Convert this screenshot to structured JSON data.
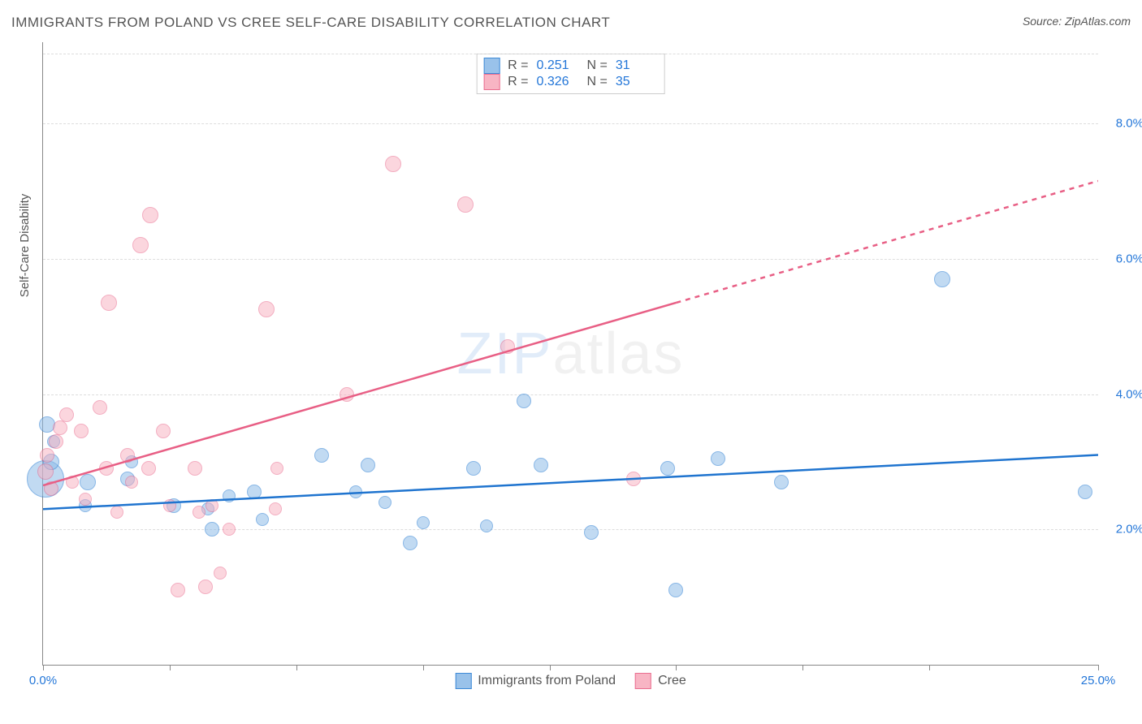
{
  "title": "IMMIGRANTS FROM POLAND VS CREE SELF-CARE DISABILITY CORRELATION CHART",
  "source_label": "Source: ZipAtlas.com",
  "ylabel": "Self-Care Disability",
  "watermark_a": "ZIP",
  "watermark_b": "atlas",
  "chart": {
    "type": "scatter",
    "background_color": "#ffffff",
    "grid_color": "#dddddd",
    "axis_color": "#888888",
    "tick_label_color": "#2376d8",
    "xlim": [
      0,
      25
    ],
    "ylim": [
      0,
      9.2
    ],
    "x_tick_positions": [
      0,
      3,
      6,
      9,
      12,
      15,
      18,
      21,
      25
    ],
    "x_tick_labels_shown": {
      "0": "0.0%",
      "25": "25.0%"
    },
    "y_tick_positions": [
      2,
      4,
      6,
      8
    ],
    "y_tick_labels": {
      "2": "2.0%",
      "4": "4.0%",
      "6": "6.0%",
      "8": "8.0%"
    },
    "tick_fontsize": 15,
    "title_fontsize": 17,
    "series": [
      {
        "id": "poland",
        "label": "Immigrants from Poland",
        "fill_color": "#8fbce8",
        "fill_opacity": 0.55,
        "stroke_color": "#2a7ed3",
        "trend_color": "#1f74cf",
        "trend_width": 2.5,
        "R": "0.251",
        "N": "31",
        "trend": {
          "x1": 0,
          "y1": 2.3,
          "x2": 25,
          "y2": 3.1,
          "dash_from_x": null
        },
        "points": [
          {
            "x": 0.05,
            "y": 2.75,
            "r": 22
          },
          {
            "x": 0.1,
            "y": 3.55,
            "r": 9
          },
          {
            "x": 0.2,
            "y": 3.0,
            "r": 9
          },
          {
            "x": 0.25,
            "y": 3.3,
            "r": 7
          },
          {
            "x": 1.05,
            "y": 2.7,
            "r": 9
          },
          {
            "x": 1.0,
            "y": 2.35,
            "r": 7
          },
          {
            "x": 2.0,
            "y": 2.75,
            "r": 8
          },
          {
            "x": 2.1,
            "y": 3.0,
            "r": 7
          },
          {
            "x": 3.1,
            "y": 2.35,
            "r": 8
          },
          {
            "x": 3.9,
            "y": 2.3,
            "r": 7
          },
          {
            "x": 4.0,
            "y": 2.0,
            "r": 8
          },
          {
            "x": 4.4,
            "y": 2.5,
            "r": 7
          },
          {
            "x": 5.0,
            "y": 2.55,
            "r": 8
          },
          {
            "x": 5.2,
            "y": 2.15,
            "r": 7
          },
          {
            "x": 6.6,
            "y": 3.1,
            "r": 8
          },
          {
            "x": 7.4,
            "y": 2.55,
            "r": 7
          },
          {
            "x": 7.7,
            "y": 2.95,
            "r": 8
          },
          {
            "x": 8.1,
            "y": 2.4,
            "r": 7
          },
          {
            "x": 8.7,
            "y": 1.8,
            "r": 8
          },
          {
            "x": 9.0,
            "y": 2.1,
            "r": 7
          },
          {
            "x": 10.2,
            "y": 2.9,
            "r": 8
          },
          {
            "x": 10.5,
            "y": 2.05,
            "r": 7
          },
          {
            "x": 11.4,
            "y": 3.9,
            "r": 8
          },
          {
            "x": 11.8,
            "y": 2.95,
            "r": 8
          },
          {
            "x": 13.0,
            "y": 1.95,
            "r": 8
          },
          {
            "x": 14.8,
            "y": 2.9,
            "r": 8
          },
          {
            "x": 15.0,
            "y": 1.1,
            "r": 8
          },
          {
            "x": 16.0,
            "y": 3.05,
            "r": 8
          },
          {
            "x": 17.5,
            "y": 2.7,
            "r": 8
          },
          {
            "x": 21.3,
            "y": 5.7,
            "r": 9
          },
          {
            "x": 24.7,
            "y": 2.55,
            "r": 8
          }
        ]
      },
      {
        "id": "cree",
        "label": "Cree",
        "fill_color": "#f8aebe",
        "fill_opacity": 0.5,
        "stroke_color": "#e85f85",
        "trend_color": "#e85f85",
        "trend_width": 2.5,
        "R": "0.326",
        "N": "35",
        "trend": {
          "x1": 0,
          "y1": 2.65,
          "x2": 25,
          "y2": 7.15,
          "dash_from_x": 15
        },
        "points": [
          {
            "x": 0.05,
            "y": 2.85,
            "r": 9
          },
          {
            "x": 0.1,
            "y": 3.1,
            "r": 8
          },
          {
            "x": 0.2,
            "y": 2.6,
            "r": 8
          },
          {
            "x": 0.3,
            "y": 3.3,
            "r": 8
          },
          {
            "x": 0.4,
            "y": 3.5,
            "r": 8
          },
          {
            "x": 0.55,
            "y": 3.7,
            "r": 8
          },
          {
            "x": 0.7,
            "y": 2.7,
            "r": 7
          },
          {
            "x": 0.9,
            "y": 3.45,
            "r": 8
          },
          {
            "x": 1.0,
            "y": 2.45,
            "r": 7
          },
          {
            "x": 1.35,
            "y": 3.8,
            "r": 8
          },
          {
            "x": 1.5,
            "y": 2.9,
            "r": 8
          },
          {
            "x": 1.55,
            "y": 5.35,
            "r": 9
          },
          {
            "x": 1.75,
            "y": 2.25,
            "r": 7
          },
          {
            "x": 2.0,
            "y": 3.1,
            "r": 8
          },
          {
            "x": 2.1,
            "y": 2.7,
            "r": 7
          },
          {
            "x": 2.3,
            "y": 6.2,
            "r": 9
          },
          {
            "x": 2.5,
            "y": 2.9,
            "r": 8
          },
          {
            "x": 2.55,
            "y": 6.65,
            "r": 9
          },
          {
            "x": 2.85,
            "y": 3.45,
            "r": 8
          },
          {
            "x": 3.0,
            "y": 2.35,
            "r": 7
          },
          {
            "x": 3.2,
            "y": 1.1,
            "r": 8
          },
          {
            "x": 3.6,
            "y": 2.9,
            "r": 8
          },
          {
            "x": 3.7,
            "y": 2.25,
            "r": 7
          },
          {
            "x": 3.85,
            "y": 1.15,
            "r": 8
          },
          {
            "x": 4.0,
            "y": 2.35,
            "r": 7
          },
          {
            "x": 4.2,
            "y": 1.35,
            "r": 7
          },
          {
            "x": 4.4,
            "y": 2.0,
            "r": 7
          },
          {
            "x": 5.3,
            "y": 5.25,
            "r": 9
          },
          {
            "x": 5.5,
            "y": 2.3,
            "r": 7
          },
          {
            "x": 5.55,
            "y": 2.9,
            "r": 7
          },
          {
            "x": 7.2,
            "y": 4.0,
            "r": 8
          },
          {
            "x": 8.3,
            "y": 7.4,
            "r": 9
          },
          {
            "x": 10.0,
            "y": 6.8,
            "r": 9
          },
          {
            "x": 11.0,
            "y": 4.7,
            "r": 8
          },
          {
            "x": 14.0,
            "y": 2.75,
            "r": 8
          }
        ]
      }
    ],
    "legend_top": {
      "r_label": "R  =",
      "n_label": "N  ="
    },
    "legend_bottom_order": [
      "poland",
      "cree"
    ]
  }
}
